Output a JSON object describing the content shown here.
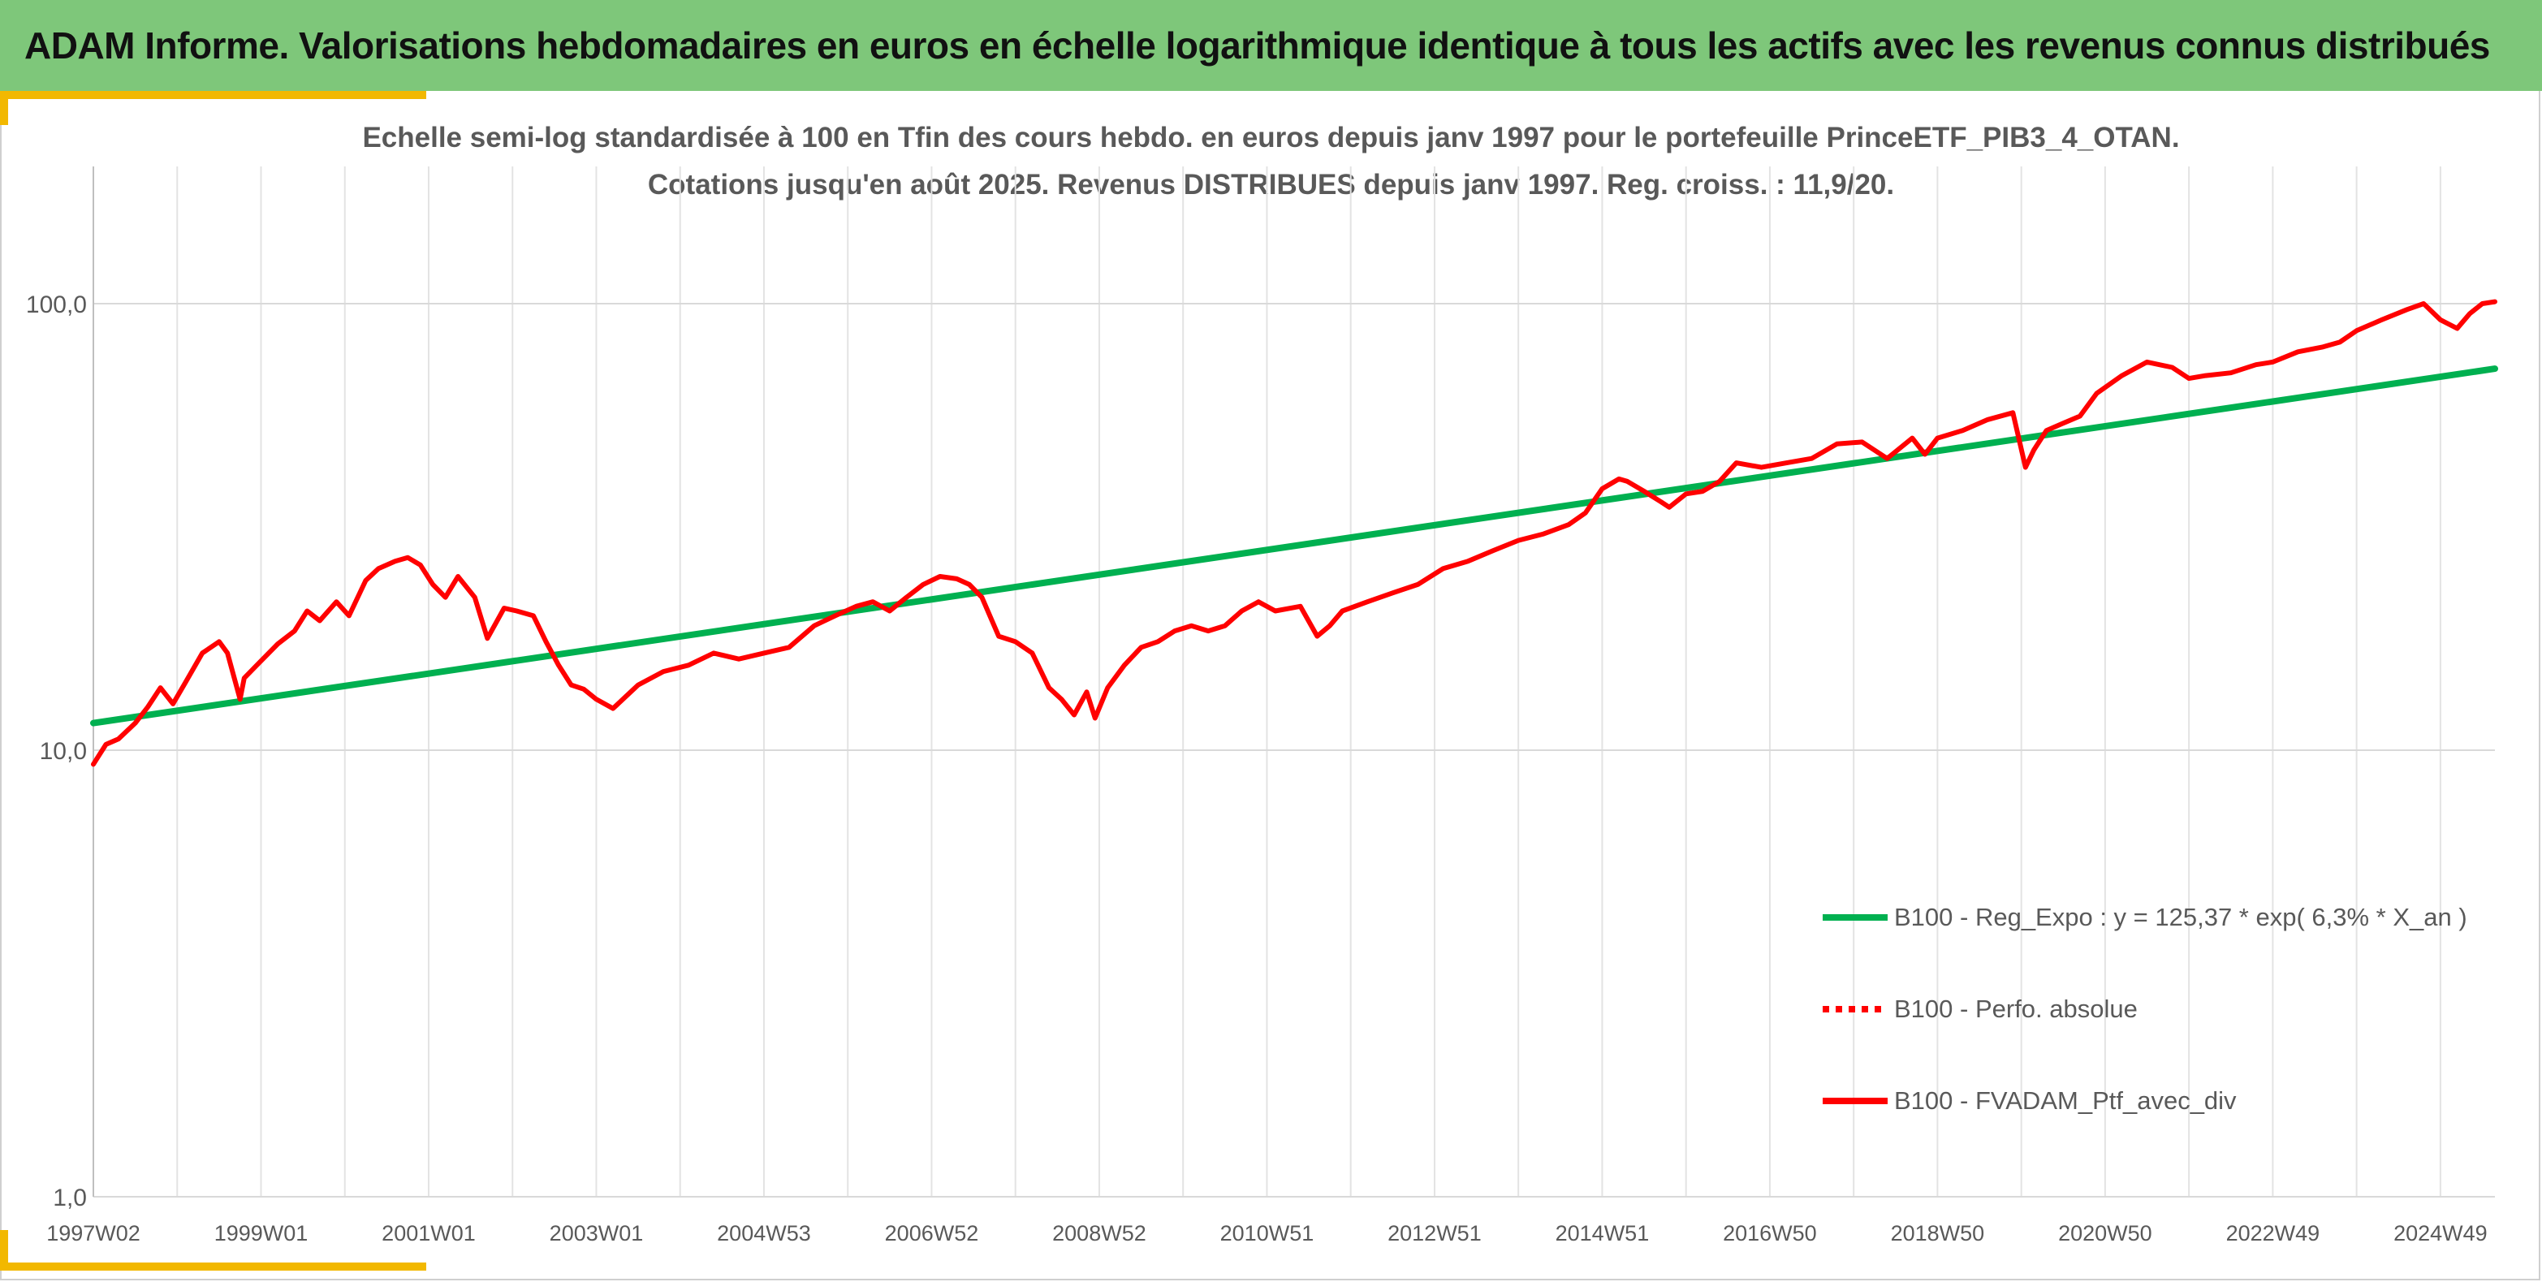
{
  "header": {
    "title": "ADAM Informe. Valorisations hebdomadaires en euros en échelle logarithmique identique à tous les actifs avec les revenus connus distribués"
  },
  "chart_data": {
    "type": "line",
    "title_line1": "Echelle semi-log standardisée à 100 en Tfin des cours hebdo. en euros depuis janv 1997 pour le portefeuille PrinceETF_PIB3_4_OTAN.",
    "title_line2": "Cotations jusqu'en août 2025. Revenus DISTRIBUES depuis janv 1997. Reg. croiss. : 11,9/20.",
    "y_scale": "log",
    "ylim": [
      1,
      200
    ],
    "y_ticks": [
      1,
      10,
      100
    ],
    "y_tick_labels": [
      "1,0",
      "10,0",
      "100,0"
    ],
    "xlim": [
      1997.0,
      2025.65
    ],
    "x_tick_labels": [
      "1997W02",
      "1999W01",
      "2001W01",
      "2003W01",
      "2004W53",
      "2006W52",
      "2008W52",
      "2010W51",
      "2012W51",
      "2014W51",
      "2016W50",
      "2018W50",
      "2020W50",
      "2022W49",
      "2024W49"
    ],
    "x_tick_years": [
      1997.0,
      1999.0,
      2001.0,
      2003.0,
      2005.0,
      2007.0,
      2009.0,
      2011.0,
      2013.0,
      2015.0,
      2017.0,
      2019.0,
      2021.0,
      2023.0,
      2025.0
    ],
    "grid": true,
    "legend_position": "bottom-right",
    "series": [
      {
        "name": "B100 - Reg_Expo : y = 125,37 * exp( 6,3% *  X_an )",
        "color": "#00b050",
        "style": "solid",
        "x": [
          1997.0,
          2025.65
        ],
        "y": [
          11.5,
          71.5
        ]
      },
      {
        "name": "B100 - Perfo. absolue",
        "color": "#ff0000",
        "style": "dotted",
        "x": [],
        "y": []
      },
      {
        "name": "B100 - FVADAM_Ptf_avec_div",
        "color": "#ff0000",
        "style": "solid",
        "x": [
          1997.0,
          1997.15,
          1997.3,
          1997.5,
          1997.65,
          1997.8,
          1997.95,
          1998.1,
          1998.3,
          1998.5,
          1998.6,
          1998.75,
          1998.8,
          1998.95,
          1999.2,
          1999.4,
          1999.55,
          1999.7,
          1999.9,
          2000.05,
          2000.25,
          2000.4,
          2000.6,
          2000.75,
          2000.9,
          2001.05,
          2001.2,
          2001.35,
          2001.55,
          2001.7,
          2001.9,
          2002.05,
          2002.25,
          2002.4,
          2002.55,
          2002.7,
          2002.85,
          2003.0,
          2003.2,
          2003.5,
          2003.8,
          2004.1,
          2004.4,
          2004.7,
          2005.0,
          2005.3,
          2005.6,
          2005.85,
          2006.1,
          2006.3,
          2006.5,
          2006.7,
          2006.9,
          2007.1,
          2007.3,
          2007.45,
          2007.6,
          2007.8,
          2008.0,
          2008.2,
          2008.4,
          2008.55,
          2008.7,
          2008.85,
          2008.95,
          2009.1,
          2009.3,
          2009.5,
          2009.7,
          2009.9,
          2010.1,
          2010.3,
          2010.5,
          2010.7,
          2010.9,
          2011.1,
          2011.4,
          2011.6,
          2011.75,
          2011.9,
          2012.2,
          2012.5,
          2012.8,
          2013.1,
          2013.4,
          2013.7,
          2014.0,
          2014.3,
          2014.6,
          2014.8,
          2015.0,
          2015.2,
          2015.3,
          2015.5,
          2015.7,
          2015.8,
          2016.0,
          2016.2,
          2016.4,
          2016.6,
          2016.9,
          2017.2,
          2017.5,
          2017.8,
          2018.1,
          2018.4,
          2018.7,
          2018.85,
          2019.0,
          2019.3,
          2019.6,
          2019.9,
          2020.05,
          2020.15,
          2020.3,
          2020.5,
          2020.7,
          2020.9,
          2021.2,
          2021.5,
          2021.8,
          2022.0,
          2022.2,
          2022.5,
          2022.8,
          2023.0,
          2023.3,
          2023.6,
          2023.8,
          2024.0,
          2024.3,
          2024.6,
          2024.8,
          2025.0,
          2025.2,
          2025.35,
          2025.5,
          2025.65
        ],
        "y": [
          9.3,
          10.3,
          10.6,
          11.5,
          12.5,
          13.8,
          12.7,
          14.2,
          16.5,
          17.5,
          16.5,
          13.0,
          14.5,
          15.5,
          17.3,
          18.5,
          20.5,
          19.5,
          21.5,
          20.0,
          24.0,
          25.5,
          26.5,
          27.0,
          26.0,
          23.5,
          22.0,
          24.5,
          22.0,
          17.8,
          20.8,
          20.5,
          20.0,
          17.5,
          15.5,
          14.0,
          13.7,
          13.0,
          12.4,
          14.0,
          15.0,
          15.5,
          16.5,
          16.0,
          16.5,
          17.0,
          19.0,
          20.0,
          21.0,
          21.5,
          20.5,
          22.0,
          23.5,
          24.5,
          24.2,
          23.5,
          22.0,
          18.0,
          17.5,
          16.5,
          13.8,
          13.0,
          12.0,
          13.5,
          11.8,
          13.8,
          15.5,
          17.0,
          17.5,
          18.5,
          19.0,
          18.5,
          19.0,
          20.5,
          21.5,
          20.5,
          21.0,
          18.0,
          19.0,
          20.5,
          21.5,
          22.5,
          23.5,
          25.5,
          26.5,
          28.0,
          29.5,
          30.5,
          32.0,
          34.0,
          38.5,
          40.5,
          40.0,
          38.0,
          36.0,
          35.0,
          37.5,
          38.0,
          40.0,
          44.0,
          43.0,
          44.0,
          45.0,
          48.5,
          49.0,
          45.0,
          50.0,
          46.0,
          50.0,
          52.0,
          55.0,
          57.0,
          43.0,
          47.0,
          52.0,
          54.0,
          56.0,
          63.0,
          69.0,
          74.0,
          72.0,
          68.0,
          69.0,
          70.0,
          73.0,
          74.0,
          78.0,
          80.0,
          82.0,
          87.0,
          92.0,
          97.0,
          100.0,
          92.0,
          88.0,
          95.0,
          100.0,
          101.0
        ]
      }
    ]
  }
}
